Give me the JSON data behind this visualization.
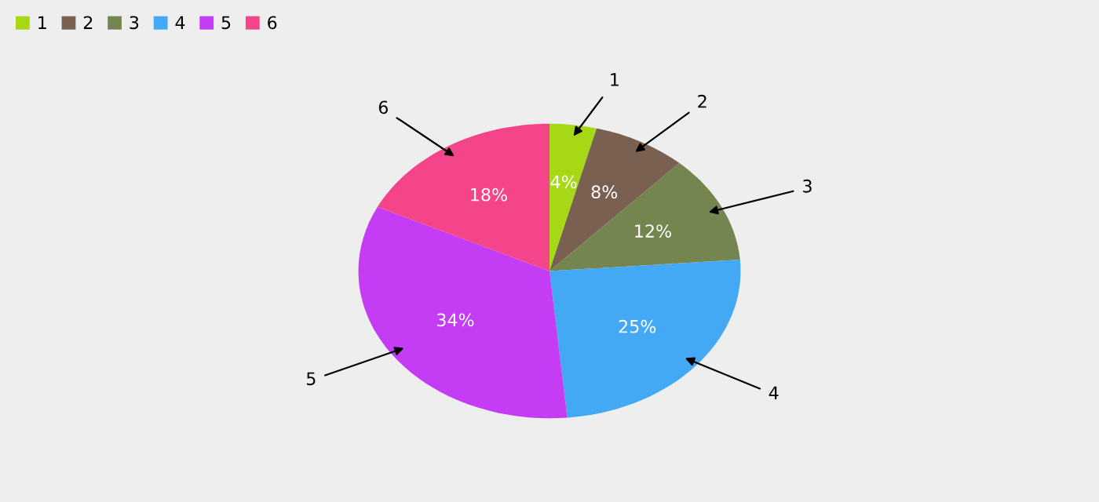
{
  "chart_data": {
    "type": "pie",
    "categories": [
      "1",
      "2",
      "3",
      "4",
      "5",
      "6"
    ],
    "values": [
      4,
      8,
      12,
      25,
      34,
      18
    ],
    "colors": [
      "#a6d816",
      "#7a6050",
      "#748550",
      "#44a9f4",
      "#c43cf4",
      "#f4448a"
    ],
    "value_labels": [
      "4%",
      "8%",
      "12%",
      "25%",
      "34%",
      "18%"
    ],
    "legend": "top left"
  }
}
